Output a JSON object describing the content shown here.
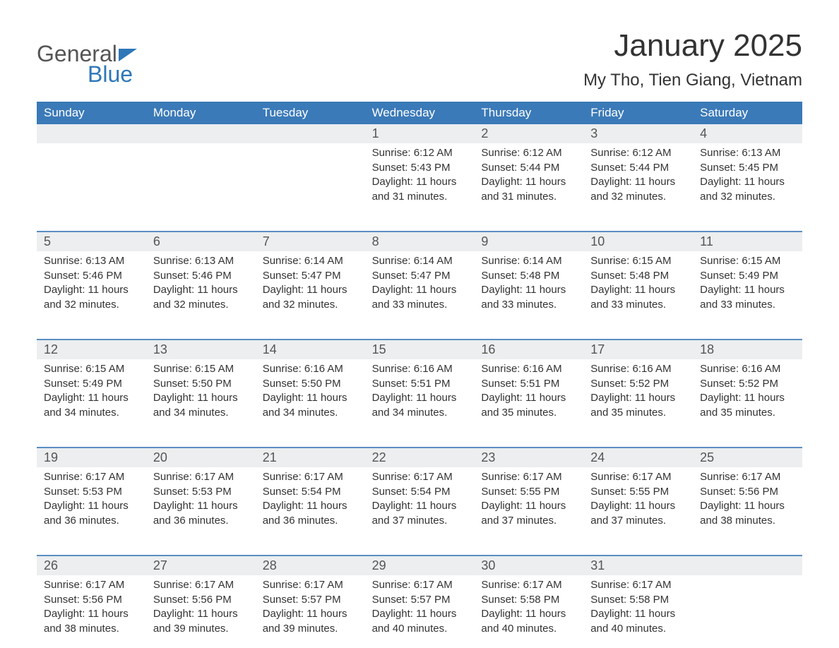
{
  "logo": {
    "text1": "General",
    "text2": "Blue"
  },
  "title": "January 2025",
  "subtitle": "My Tho, Tien Giang, Vietnam",
  "colors": {
    "header_bg": "#3b7ab8",
    "header_text": "#ffffff",
    "daynum_bg": "#eceeef",
    "sep": "#5a8fc4",
    "body_text": "#333333",
    "logo_blue": "#2f77b8"
  },
  "day_headers": [
    "Sunday",
    "Monday",
    "Tuesday",
    "Wednesday",
    "Thursday",
    "Friday",
    "Saturday"
  ],
  "weeks": [
    [
      {
        "n": "",
        "sr": "",
        "ss": "",
        "dl": ""
      },
      {
        "n": "",
        "sr": "",
        "ss": "",
        "dl": ""
      },
      {
        "n": "",
        "sr": "",
        "ss": "",
        "dl": ""
      },
      {
        "n": "1",
        "sr": "6:12 AM",
        "ss": "5:43 PM",
        "dl": "11 hours and 31 minutes."
      },
      {
        "n": "2",
        "sr": "6:12 AM",
        "ss": "5:44 PM",
        "dl": "11 hours and 31 minutes."
      },
      {
        "n": "3",
        "sr": "6:12 AM",
        "ss": "5:44 PM",
        "dl": "11 hours and 32 minutes."
      },
      {
        "n": "4",
        "sr": "6:13 AM",
        "ss": "5:45 PM",
        "dl": "11 hours and 32 minutes."
      }
    ],
    [
      {
        "n": "5",
        "sr": "6:13 AM",
        "ss": "5:46 PM",
        "dl": "11 hours and 32 minutes."
      },
      {
        "n": "6",
        "sr": "6:13 AM",
        "ss": "5:46 PM",
        "dl": "11 hours and 32 minutes."
      },
      {
        "n": "7",
        "sr": "6:14 AM",
        "ss": "5:47 PM",
        "dl": "11 hours and 32 minutes."
      },
      {
        "n": "8",
        "sr": "6:14 AM",
        "ss": "5:47 PM",
        "dl": "11 hours and 33 minutes."
      },
      {
        "n": "9",
        "sr": "6:14 AM",
        "ss": "5:48 PM",
        "dl": "11 hours and 33 minutes."
      },
      {
        "n": "10",
        "sr": "6:15 AM",
        "ss": "5:48 PM",
        "dl": "11 hours and 33 minutes."
      },
      {
        "n": "11",
        "sr": "6:15 AM",
        "ss": "5:49 PM",
        "dl": "11 hours and 33 minutes."
      }
    ],
    [
      {
        "n": "12",
        "sr": "6:15 AM",
        "ss": "5:49 PM",
        "dl": "11 hours and 34 minutes."
      },
      {
        "n": "13",
        "sr": "6:15 AM",
        "ss": "5:50 PM",
        "dl": "11 hours and 34 minutes."
      },
      {
        "n": "14",
        "sr": "6:16 AM",
        "ss": "5:50 PM",
        "dl": "11 hours and 34 minutes."
      },
      {
        "n": "15",
        "sr": "6:16 AM",
        "ss": "5:51 PM",
        "dl": "11 hours and 34 minutes."
      },
      {
        "n": "16",
        "sr": "6:16 AM",
        "ss": "5:51 PM",
        "dl": "11 hours and 35 minutes."
      },
      {
        "n": "17",
        "sr": "6:16 AM",
        "ss": "5:52 PM",
        "dl": "11 hours and 35 minutes."
      },
      {
        "n": "18",
        "sr": "6:16 AM",
        "ss": "5:52 PM",
        "dl": "11 hours and 35 minutes."
      }
    ],
    [
      {
        "n": "19",
        "sr": "6:17 AM",
        "ss": "5:53 PM",
        "dl": "11 hours and 36 minutes."
      },
      {
        "n": "20",
        "sr": "6:17 AM",
        "ss": "5:53 PM",
        "dl": "11 hours and 36 minutes."
      },
      {
        "n": "21",
        "sr": "6:17 AM",
        "ss": "5:54 PM",
        "dl": "11 hours and 36 minutes."
      },
      {
        "n": "22",
        "sr": "6:17 AM",
        "ss": "5:54 PM",
        "dl": "11 hours and 37 minutes."
      },
      {
        "n": "23",
        "sr": "6:17 AM",
        "ss": "5:55 PM",
        "dl": "11 hours and 37 minutes."
      },
      {
        "n": "24",
        "sr": "6:17 AM",
        "ss": "5:55 PM",
        "dl": "11 hours and 37 minutes."
      },
      {
        "n": "25",
        "sr": "6:17 AM",
        "ss": "5:56 PM",
        "dl": "11 hours and 38 minutes."
      }
    ],
    [
      {
        "n": "26",
        "sr": "6:17 AM",
        "ss": "5:56 PM",
        "dl": "11 hours and 38 minutes."
      },
      {
        "n": "27",
        "sr": "6:17 AM",
        "ss": "5:56 PM",
        "dl": "11 hours and 39 minutes."
      },
      {
        "n": "28",
        "sr": "6:17 AM",
        "ss": "5:57 PM",
        "dl": "11 hours and 39 minutes."
      },
      {
        "n": "29",
        "sr": "6:17 AM",
        "ss": "5:57 PM",
        "dl": "11 hours and 40 minutes."
      },
      {
        "n": "30",
        "sr": "6:17 AM",
        "ss": "5:58 PM",
        "dl": "11 hours and 40 minutes."
      },
      {
        "n": "31",
        "sr": "6:17 AM",
        "ss": "5:58 PM",
        "dl": "11 hours and 40 minutes."
      },
      {
        "n": "",
        "sr": "",
        "ss": "",
        "dl": ""
      }
    ]
  ],
  "labels": {
    "sunrise": "Sunrise:",
    "sunset": "Sunset:",
    "daylight": "Daylight:"
  }
}
